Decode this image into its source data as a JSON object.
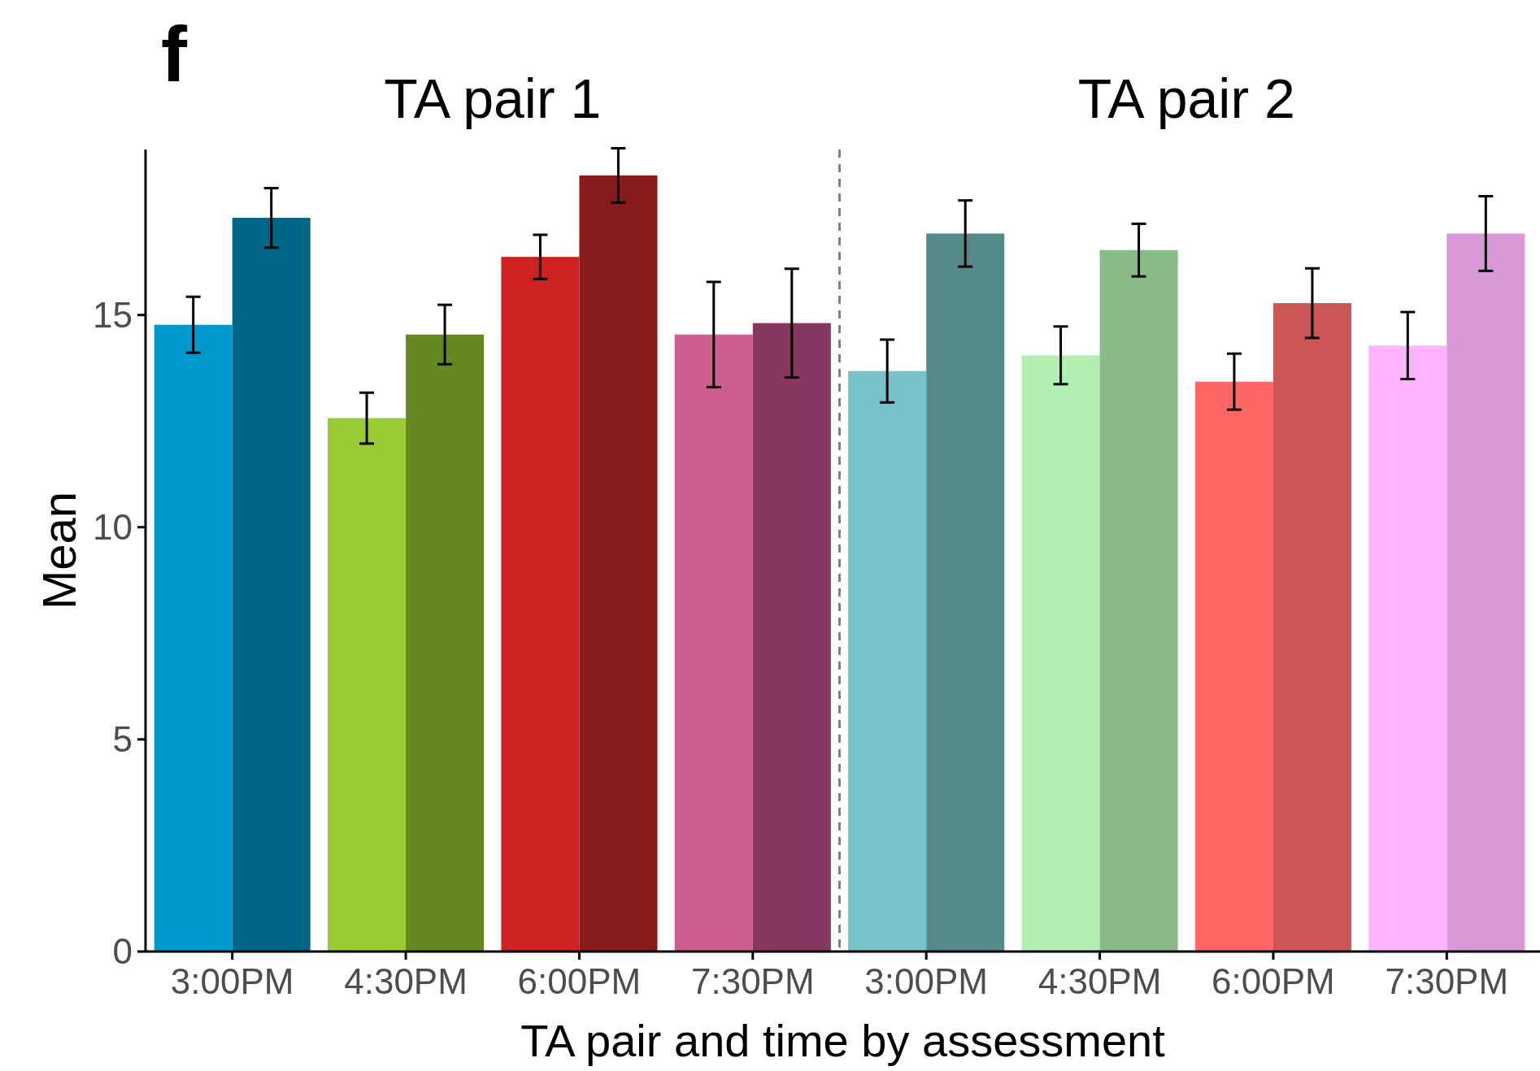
{
  "chart_data": {
    "type": "bar",
    "xlabel": "TA pair and time by assessment",
    "ylabel": "Mean",
    "annotations": [
      "f",
      "TA pair 1",
      "TA pair 2"
    ],
    "categories": [
      "3:00PM",
      "4:30PM",
      "6:00PM",
      "7:30PM",
      "3:00PM",
      "4:30PM",
      "6:00PM",
      "7:30PM"
    ],
    "series": [
      {
        "colors": [
          "#0099cc",
          "#99cc33",
          "#cc2222",
          "#cc5f90",
          "#77c2c9",
          "#b3eeb3",
          "#ff6666",
          "#ffb3ff"
        ],
        "values": [
          14.77,
          12.57,
          16.37,
          14.54,
          13.68,
          14.05,
          13.43,
          14.28
        ],
        "errors": [
          0.66,
          0.6,
          0.52,
          1.24,
          0.74,
          0.68,
          0.66,
          0.79
        ]
      },
      {
        "colors": [
          "#006688",
          "#668822",
          "#881a1a",
          "#883860",
          "#558888",
          "#88bb88",
          "#cc5555",
          "#d999d9"
        ],
        "values": [
          17.29,
          14.54,
          18.29,
          14.81,
          16.92,
          16.53,
          15.28,
          16.92
        ],
        "errors": [
          0.7,
          0.7,
          0.64,
          1.28,
          0.78,
          0.62,
          0.82,
          0.88
        ]
      }
    ],
    "ylim": [
      0,
      18.9
    ],
    "yticks": [
      0,
      5,
      10,
      15
    ],
    "grid": false
  }
}
